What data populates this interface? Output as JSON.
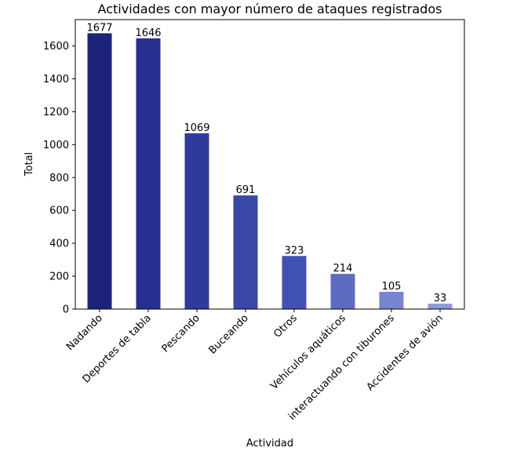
{
  "chart_data": {
    "type": "bar",
    "title": "Actividades con mayor número de ataques registrados",
    "xlabel": "Actividad",
    "ylabel": "Total",
    "ylim": [
      0,
      1760
    ],
    "yticks": [
      0,
      200,
      400,
      600,
      800,
      1000,
      1200,
      1400,
      1600
    ],
    "grid": false,
    "categories": [
      "Nadando",
      "Deportes de tabla",
      "Pescando",
      "Buceando",
      "Otros",
      "Vehículos aquáticos",
      "interactuando con tiburones",
      "Accidentes de avión"
    ],
    "values": [
      1677,
      1646,
      1069,
      691,
      323,
      214,
      105,
      33
    ],
    "colors": [
      "#1b237c",
      "#26318f",
      "#2e3b9b",
      "#3847a8",
      "#4150b5",
      "#5e6bc2",
      "#7885cf",
      "#8e9ad9"
    ]
  }
}
